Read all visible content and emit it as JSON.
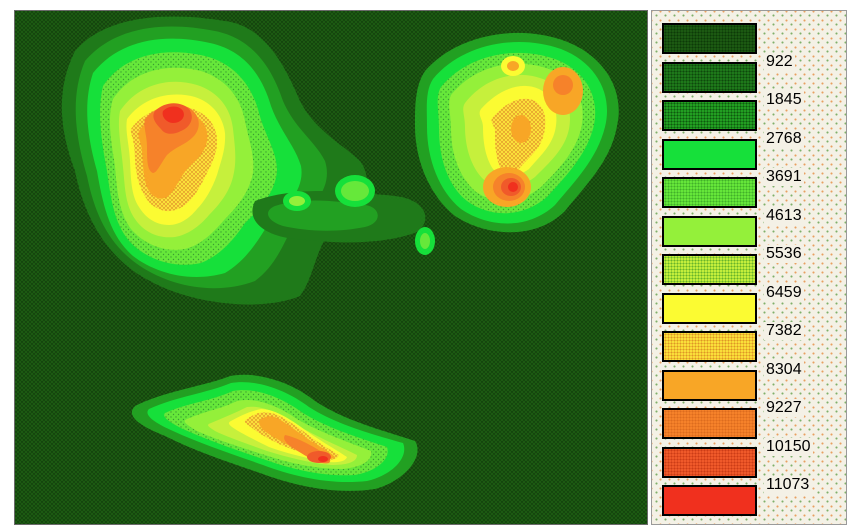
{
  "map": {
    "background_color": "#1c5a12"
  },
  "legend": {
    "swatches": [
      {
        "color": "#1c5a12",
        "pattern": "dots-dark"
      },
      {
        "color": "#1f7a1a",
        "pattern": "dots-dark"
      },
      {
        "color": "#22a022",
        "pattern": "dots-dark"
      },
      {
        "color": "#16e03a",
        "pattern": "solid"
      },
      {
        "color": "#66e83a",
        "pattern": "dots-light"
      },
      {
        "color": "#94f03a",
        "pattern": "solid"
      },
      {
        "color": "#c6f03c",
        "pattern": "dots-light"
      },
      {
        "color": "#fbfb32",
        "pattern": "solid"
      },
      {
        "color": "#fbe03a",
        "pattern": "dots-orange"
      },
      {
        "color": "#f8a626",
        "pattern": "solid"
      },
      {
        "color": "#f6822a",
        "pattern": "dots-orange"
      },
      {
        "color": "#f05a2a",
        "pattern": "dots-red"
      },
      {
        "color": "#f0301e",
        "pattern": "solid"
      }
    ],
    "labels": [
      "922",
      "1845",
      "2768",
      "3691",
      "4613",
      "5536",
      "6459",
      "7382",
      "8304",
      "9227",
      "10150",
      "11073"
    ]
  }
}
